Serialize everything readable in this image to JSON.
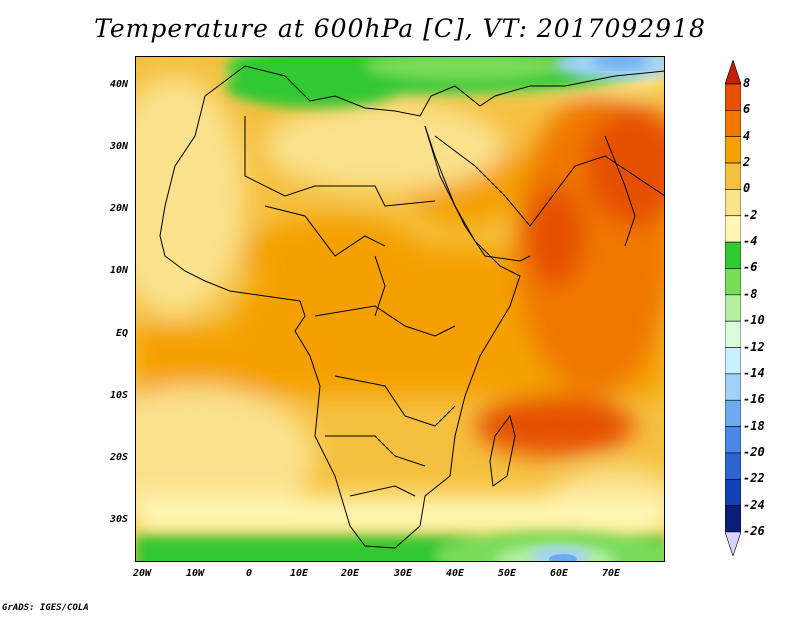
{
  "title": "Temperature at 600hPa [C], VT: 2017092918",
  "footer": "GrADS: IGES/COLA",
  "map": {
    "lon_ticks": [
      "20W",
      "10W",
      "0",
      "10E",
      "20E",
      "30E",
      "40E",
      "50E",
      "60E",
      "70E"
    ],
    "lat_ticks": [
      "40N",
      "30N",
      "20N",
      "10N",
      "EQ",
      "10S",
      "20S",
      "30S"
    ]
  },
  "colorbar": {
    "labels": [
      "8",
      "6",
      "4",
      "2",
      "0",
      "-2",
      "-4",
      "-6",
      "-8",
      "-10",
      "-12",
      "-14",
      "-16",
      "-18",
      "-20",
      "-22",
      "-24",
      "-26"
    ],
    "colors": [
      "#c81e00",
      "#e65000",
      "#f07800",
      "#f5a000",
      "#f5c040",
      "#fae18c",
      "#fff7b4",
      "#32c832",
      "#78dc5a",
      "#b4f0a0",
      "#dcfadc",
      "#c8f0ff",
      "#a0d2fa",
      "#6eaaf0",
      "#4b87e6",
      "#2d64d2",
      "#1441b4",
      "#0a1e78"
    ],
    "under_color": "#dcd2ff"
  }
}
